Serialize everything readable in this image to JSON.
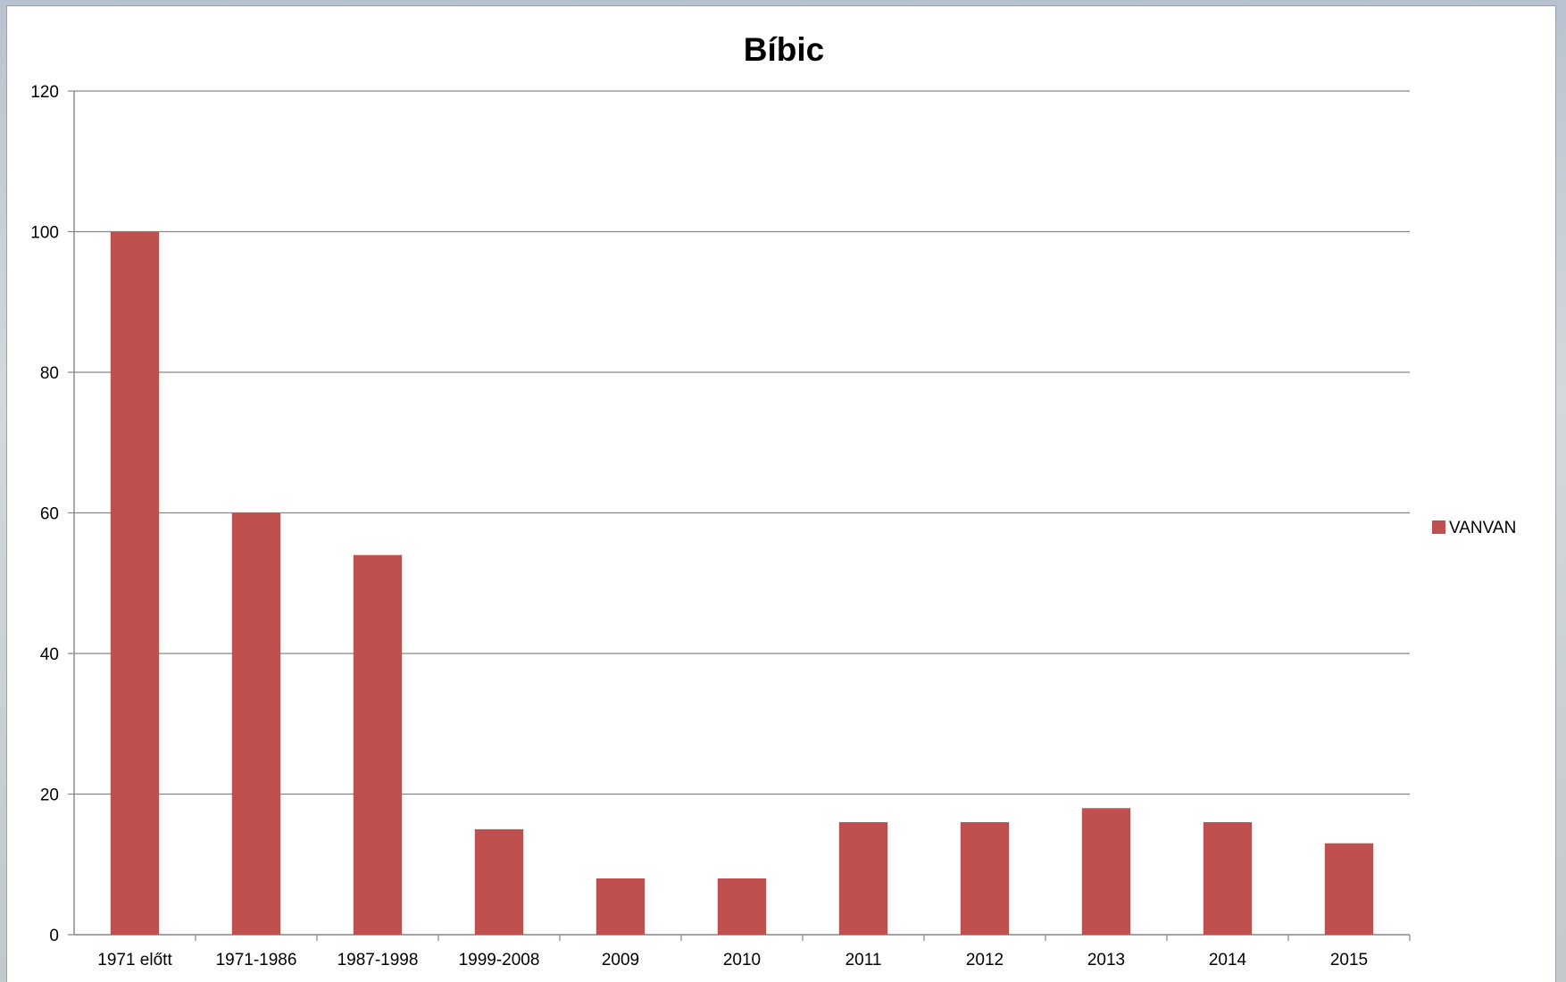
{
  "chart_data": {
    "type": "bar",
    "title": "Bíbic",
    "xlabel": "",
    "ylabel": "",
    "categories": [
      "1971 előtt",
      "1971-1986",
      "1987-1998",
      "1999-2008",
      "2009",
      "2010",
      "2011",
      "2012",
      "2013",
      "2014",
      "2015"
    ],
    "series": [
      {
        "name": "VANVAN",
        "values": [
          100,
          60,
          54,
          15,
          8,
          8,
          16,
          16,
          18,
          16,
          13
        ],
        "color": "#c0504d"
      }
    ],
    "ylim": [
      0,
      120
    ],
    "yticks": [
      "0",
      "20",
      "40",
      "60",
      "80",
      "100",
      "120"
    ],
    "grid": true,
    "legend_position": "right"
  }
}
